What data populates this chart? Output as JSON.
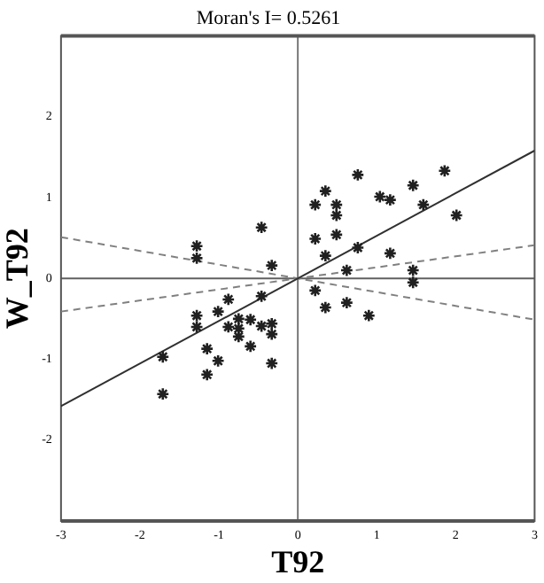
{
  "chart_data": {
    "type": "scatter",
    "title": "Moran's I= 0.5261",
    "xlabel": "T92",
    "ylabel": "W_T92",
    "xlim": [
      -3,
      3
    ],
    "ylim": [
      -3,
      3
    ],
    "xticks": [
      -3,
      -2,
      -1,
      0,
      1,
      2,
      3
    ],
    "yticks": [
      -2,
      -1,
      0,
      1,
      2
    ],
    "marker": "cross",
    "grid": false,
    "legend": false,
    "ref_lines": [
      {
        "axis": "x",
        "value": 0,
        "color": "#787878"
      },
      {
        "axis": "y",
        "value": 0,
        "color": "#606060"
      }
    ],
    "series": [
      {
        "color": "#202020",
        "x": [
          -1.28,
          -1.28,
          -0.46,
          -0.33,
          0.22,
          0.35,
          0.49,
          0.49,
          0.22,
          0.49,
          0.35,
          0.76,
          0.76,
          1.04,
          1.17,
          1.46,
          1.59,
          1.86,
          2.01,
          1.17,
          0.62,
          1.46,
          1.46,
          0.22,
          0.35,
          0.62,
          0.9,
          -0.46,
          -0.88,
          -1.28,
          -1.28,
          -1.01,
          -0.88,
          -0.75,
          -0.75,
          -0.75,
          -0.6,
          -0.46,
          -0.33,
          -0.33,
          -0.6,
          -1.15,
          -1.01,
          -0.33,
          -1.71,
          -1.15,
          -1.71
        ],
        "values": [
          0.4,
          0.25,
          0.63,
          0.16,
          0.91,
          1.08,
          0.91,
          0.78,
          0.49,
          0.54,
          0.28,
          1.28,
          0.38,
          1.01,
          0.97,
          1.15,
          0.91,
          1.33,
          0.78,
          0.31,
          0.1,
          0.1,
          -0.05,
          -0.15,
          -0.36,
          -0.3,
          -0.46,
          -0.22,
          -0.26,
          -0.46,
          -0.6,
          -0.41,
          -0.6,
          -0.5,
          -0.62,
          -0.72,
          -0.51,
          -0.59,
          -0.56,
          -0.69,
          -0.84,
          -0.87,
          -1.02,
          -1.05,
          -0.97,
          -1.19,
          -1.43
        ]
      },
      {
        "type": "line",
        "color": "#303030",
        "line_style": "solid",
        "marker": "none",
        "x": [
          -3,
          3
        ],
        "values": [
          -1.58,
          1.58
        ]
      },
      {
        "type": "line",
        "color": "#808080",
        "line_style": "dashed",
        "marker": "none",
        "x": [
          -3,
          3
        ],
        "values": [
          0.51,
          -0.51
        ]
      },
      {
        "type": "line",
        "color": "#808080",
        "line_style": "dashed",
        "marker": "none",
        "x": [
          -3,
          3
        ],
        "values": [
          -0.41,
          0.41
        ]
      }
    ]
  }
}
